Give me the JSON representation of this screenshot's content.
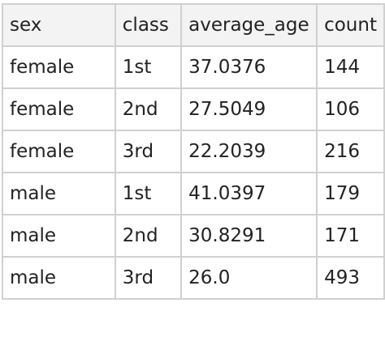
{
  "table": {
    "columns": [
      "sex",
      "class",
      "average_age",
      "count"
    ],
    "rows": [
      [
        "female",
        "1st",
        "37.0376",
        "144"
      ],
      [
        "female",
        "2nd",
        "27.5049",
        "106"
      ],
      [
        "female",
        "3rd",
        "22.2039",
        "216"
      ],
      [
        "male",
        "1st",
        "41.0397",
        "179"
      ],
      [
        "male",
        "2nd",
        "30.8291",
        "171"
      ],
      [
        "male",
        "3rd",
        "26.0",
        "493"
      ]
    ]
  }
}
